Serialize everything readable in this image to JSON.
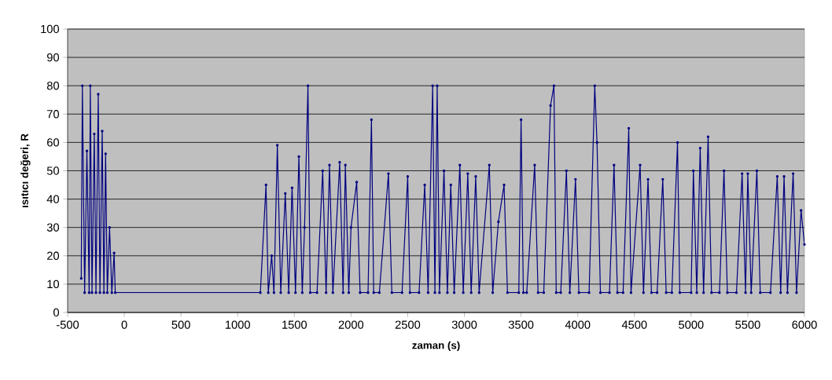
{
  "chart_data": {
    "type": "line",
    "xlabel": "zaman (s)",
    "ylabel": "ısıtıcı değeri, R",
    "x": [
      -380,
      -370,
      -350,
      -330,
      -310,
      -300,
      -285,
      -265,
      -250,
      -230,
      -215,
      -195,
      -180,
      -165,
      -150,
      -130,
      -110,
      -90,
      -80,
      1200,
      1250,
      1270,
      1300,
      1320,
      1350,
      1380,
      1420,
      1450,
      1480,
      1510,
      1540,
      1570,
      1590,
      1620,
      1640,
      1700,
      1750,
      1780,
      1810,
      1840,
      1900,
      1930,
      1950,
      1980,
      2000,
      2050,
      2080,
      2150,
      2180,
      2200,
      2250,
      2330,
      2360,
      2450,
      2500,
      2520,
      2600,
      2650,
      2680,
      2720,
      2740,
      2760,
      2780,
      2820,
      2850,
      2880,
      2910,
      2960,
      2990,
      3030,
      3060,
      3100,
      3130,
      3220,
      3250,
      3300,
      3350,
      3380,
      3480,
      3500,
      3520,
      3550,
      3620,
      3650,
      3700,
      3760,
      3790,
      3810,
      3850,
      3900,
      3930,
      3980,
      4010,
      4100,
      4150,
      4170,
      4200,
      4280,
      4320,
      4350,
      4400,
      4450,
      4470,
      4550,
      4580,
      4620,
      4650,
      4700,
      4750,
      4780,
      4830,
      4880,
      4900,
      5000,
      5020,
      5050,
      5080,
      5110,
      5150,
      5180,
      5250,
      5290,
      5320,
      5400,
      5450,
      5480,
      5500,
      5530,
      5580,
      5610,
      5700,
      5760,
      5790,
      5820,
      5850,
      5900,
      5930,
      5970,
      6000
    ],
    "series": [
      {
        "color": "#000080",
        "values": [
          12,
          80,
          7,
          57,
          7,
          80,
          7,
          63,
          7,
          77,
          7,
          64,
          7,
          56,
          7,
          30,
          7,
          21,
          7,
          7,
          45,
          7,
          20,
          7,
          59,
          7,
          42,
          7,
          44,
          7,
          55,
          7,
          30,
          80,
          7,
          7,
          50,
          7,
          52,
          7,
          53,
          7,
          52,
          7,
          30,
          46,
          7,
          7,
          68,
          7,
          7,
          49,
          7,
          7,
          48,
          7,
          7,
          45,
          7,
          80,
          7,
          80,
          7,
          50,
          7,
          45,
          7,
          52,
          7,
          49,
          7,
          48,
          7,
          52,
          7,
          32,
          45,
          7,
          7,
          68,
          7,
          7,
          52,
          7,
          7,
          73,
          80,
          7,
          7,
          50,
          7,
          47,
          7,
          7,
          80,
          60,
          7,
          7,
          52,
          7,
          7,
          65,
          7,
          52,
          7,
          47,
          7,
          7,
          47,
          7,
          7,
          60,
          7,
          7,
          50,
          7,
          58,
          7,
          62,
          7,
          7,
          50,
          7,
          7,
          49,
          7,
          49,
          7,
          50,
          7,
          7,
          48,
          7,
          48,
          7,
          49,
          7,
          36,
          24
        ]
      }
    ],
    "xlim": [
      -500,
      6000
    ],
    "ylim": [
      0,
      100
    ],
    "xticks": [
      -500,
      0,
      500,
      1000,
      1500,
      2000,
      2500,
      3000,
      3500,
      4000,
      4500,
      5000,
      5500,
      6000
    ],
    "yticks": [
      0,
      10,
      20,
      30,
      40,
      50,
      60,
      70,
      80,
      90,
      100
    ],
    "grid": "y",
    "marker": "circle",
    "line_style": "solid"
  }
}
